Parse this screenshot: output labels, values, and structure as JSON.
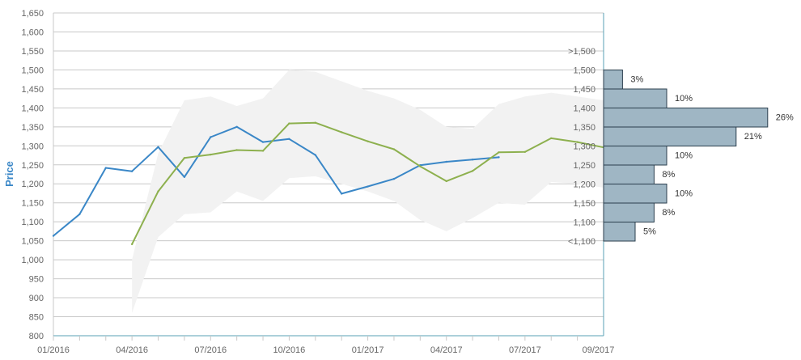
{
  "chart_data": {
    "type": "line",
    "ylabel": "Price",
    "ylim": [
      800,
      1650
    ],
    "y_ticks": [
      800,
      850,
      900,
      950,
      1000,
      1050,
      1100,
      1150,
      1200,
      1250,
      1300,
      1350,
      1400,
      1450,
      1500,
      1550,
      1600,
      1650
    ],
    "y_tick_labels": [
      "800",
      "850",
      "900",
      "950",
      "1,000",
      "1,050",
      "1,100",
      "1,150",
      "1,200",
      "1,250",
      "1,300",
      "1,350",
      "1,400",
      "1,450",
      "1,500",
      "1,550",
      "1,600",
      "1,650"
    ],
    "x_ticks": [
      "01/2016",
      "04/2016",
      "07/2016",
      "10/2016",
      "01/2017",
      "04/2017",
      "07/2017",
      "09/2017"
    ],
    "x_tick_months": [
      0,
      3,
      6,
      9,
      12,
      15,
      18,
      20.8
    ],
    "xlim_months": [
      0,
      21
    ],
    "grid": true,
    "colors": {
      "actual": "#3a87c7",
      "forecast": "#8db04e",
      "band": "#f2f2f2",
      "histogram": "#9fb6c4",
      "histogram_border": "#2b3f4e",
      "axis": "#5aa0b4",
      "grid": "#c8c8c8"
    },
    "series": [
      {
        "key": "actual",
        "x_months": [
          0,
          1,
          2,
          3,
          4,
          5,
          6,
          7,
          8,
          9,
          10,
          11,
          12,
          13,
          14,
          15,
          16,
          17
        ],
        "values": [
          1063,
          1120,
          1242,
          1233,
          1297,
          1218,
          1323,
          1350,
          1310,
          1318,
          1276,
          1174,
          1193,
          1213,
          1249,
          1258,
          1264,
          1270
        ]
      },
      {
        "key": "forecast",
        "x_months": [
          3,
          4,
          5,
          6,
          7,
          8,
          9,
          10,
          11,
          12,
          13,
          14,
          15,
          16,
          17,
          18,
          19,
          20,
          21
        ],
        "values": [
          1041,
          1180,
          1268,
          1277,
          1289,
          1287,
          1359,
          1361,
          1336,
          1312,
          1291,
          1246,
          1207,
          1234,
          1283,
          1284,
          1320,
          1310,
          1296
        ]
      }
    ],
    "band": {
      "x_months": [
        3,
        4,
        5,
        6,
        7,
        8,
        9,
        10,
        11,
        12,
        13,
        14,
        15,
        16,
        17,
        18,
        19,
        20,
        21
      ],
      "upper": [
        1000,
        1280,
        1420,
        1430,
        1405,
        1425,
        1500,
        1495,
        1470,
        1445,
        1425,
        1395,
        1350,
        1345,
        1410,
        1430,
        1440,
        1430,
        1420
      ],
      "lower": [
        860,
        1060,
        1120,
        1125,
        1180,
        1155,
        1215,
        1220,
        1200,
        1180,
        1155,
        1105,
        1075,
        1110,
        1150,
        1145,
        1205,
        1200,
        1190
      ]
    },
    "histogram": {
      "bins": [
        {
          "label": ">1,500",
          "pct": null
        },
        {
          "label": "1,500",
          "pct": 3,
          "pct_label": "3%"
        },
        {
          "label": "1,450",
          "pct": 10,
          "pct_label": "10%"
        },
        {
          "label": "1,400",
          "pct": 26,
          "pct_label": "26%"
        },
        {
          "label": "1,350",
          "pct": 21,
          "pct_label": "21%"
        },
        {
          "label": "1,300",
          "pct": 10,
          "pct_label": "10%"
        },
        {
          "label": "1,250",
          "pct": 8,
          "pct_label": "8%"
        },
        {
          "label": "1,200",
          "pct": 10,
          "pct_label": "10%"
        },
        {
          "label": "1,150",
          "pct": 8,
          "pct_label": "8%"
        },
        {
          "label": "1,100",
          "pct": 5,
          "pct_label": "5%"
        },
        {
          "label": "<1,100",
          "pct": null
        }
      ]
    }
  }
}
